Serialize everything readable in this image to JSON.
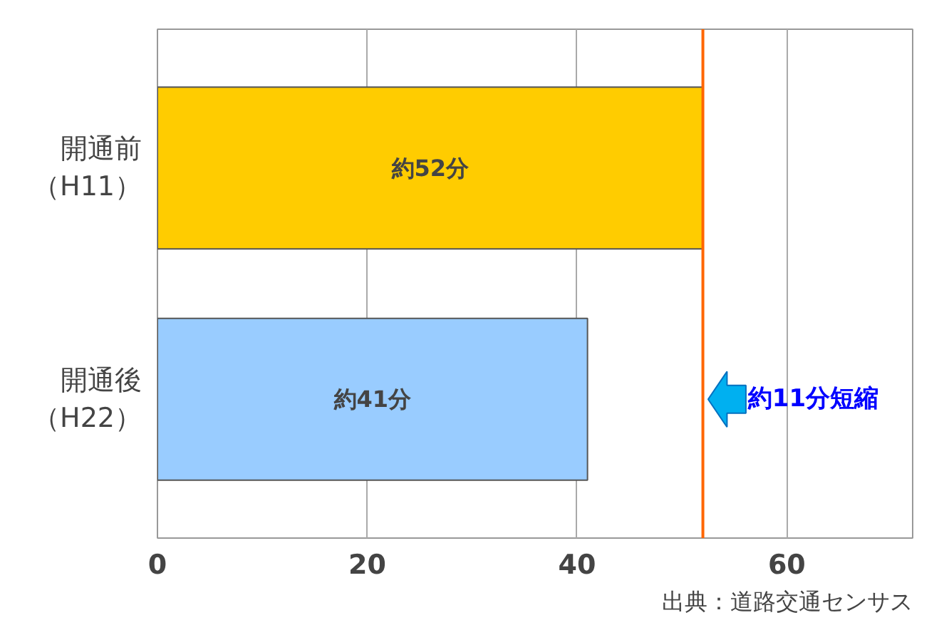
{
  "chart_data": {
    "type": "bar",
    "orientation": "horizontal",
    "categories": [
      "開通前（H11）",
      "開通後（H22）"
    ],
    "values": [
      52,
      41
    ],
    "colors": [
      "#ffcc00",
      "#99ccff"
    ],
    "value_labels": [
      "約52分",
      "約41分"
    ],
    "xlim": [
      0,
      72
    ],
    "xticks": [
      0,
      20,
      40,
      60
    ],
    "grid": "x",
    "ref_lines": [
      {
        "axis": "x",
        "value": 52,
        "color": "#ff6600"
      }
    ],
    "annotations": [
      {
        "text": "約11分短縮",
        "x": 52,
        "y": "開通後（H22）"
      },
      "出典：道路交通センサス"
    ]
  }
}
